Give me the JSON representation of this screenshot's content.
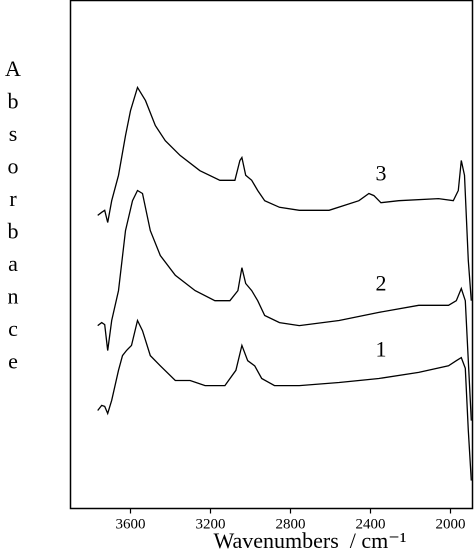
{
  "chart_data": {
    "type": "line",
    "x_label": "Wavenumbers  / cm⁻¹",
    "y_label": "Absorbance",
    "xlim": [
      3900,
      1890
    ],
    "xticks": [
      3600,
      3200,
      2800,
      2400,
      2000
    ],
    "ylim": [
      0,
      100
    ],
    "color": "#000000",
    "series": [
      {
        "name": "1",
        "x": [
          3764,
          3744,
          3729,
          3714,
          3694,
          3660,
          3640,
          3620,
          3595,
          3565,
          3540,
          3501,
          3451,
          3376,
          3302,
          3227,
          3128,
          3073,
          3043,
          3014,
          2979,
          2944,
          2880,
          2756,
          2557,
          2358,
          2159,
          2010,
          1971,
          1946,
          1926,
          1911,
          1896
        ],
        "values": [
          19.3,
          20.3,
          20.1,
          18.7,
          21.3,
          27.2,
          30.1,
          31.1,
          32.1,
          37.0,
          35.0,
          30.1,
          28.1,
          25.2,
          25.2,
          24.2,
          24.2,
          27.2,
          32.1,
          29.1,
          28.1,
          25.6,
          24.2,
          24.2,
          24.8,
          25.6,
          26.8,
          28.1,
          29.1,
          29.7,
          27.6,
          15.4,
          5.5
        ]
      },
      {
        "name": "2",
        "x": [
          3764,
          3744,
          3729,
          3714,
          3694,
          3660,
          3625,
          3590,
          3565,
          3540,
          3501,
          3451,
          3376,
          3277,
          3178,
          3103,
          3063,
          3043,
          3024,
          2994,
          2964,
          2929,
          2855,
          2756,
          2557,
          2358,
          2159,
          2010,
          1971,
          1946,
          1926,
          1911,
          1896
        ],
        "values": [
          36.0,
          36.6,
          36.2,
          31.1,
          37.0,
          42.9,
          54.7,
          60.6,
          62.6,
          62.0,
          54.7,
          49.8,
          45.9,
          42.9,
          40.9,
          40.9,
          42.9,
          47.4,
          44.3,
          42.9,
          40.9,
          38.0,
          36.6,
          36.0,
          37.0,
          38.6,
          40.0,
          40.0,
          40.9,
          43.3,
          40.9,
          29.1,
          17.3
        ]
      },
      {
        "name": "3",
        "x": [
          3764,
          3744,
          3729,
          3714,
          3694,
          3660,
          3625,
          3600,
          3565,
          3525,
          3476,
          3426,
          3352,
          3253,
          3153,
          3078,
          3053,
          3043,
          3024,
          2994,
          2964,
          2929,
          2855,
          2756,
          2607,
          2458,
          2408,
          2383,
          2348,
          2259,
          2060,
          1986,
          1961,
          1946,
          1930,
          1911,
          1896
        ],
        "values": [
          57.7,
          58.3,
          58.7,
          56.3,
          60.6,
          65.6,
          73.4,
          78.3,
          82.9,
          80.3,
          75.4,
          72.4,
          69.5,
          66.5,
          64.6,
          64.6,
          68.5,
          69.1,
          65.6,
          64.6,
          62.6,
          60.6,
          59.3,
          58.7,
          58.7,
          60.6,
          62.0,
          61.6,
          60.2,
          60.6,
          61.0,
          60.6,
          62.6,
          68.5,
          65.6,
          48.8,
          40.9
        ]
      }
    ]
  }
}
